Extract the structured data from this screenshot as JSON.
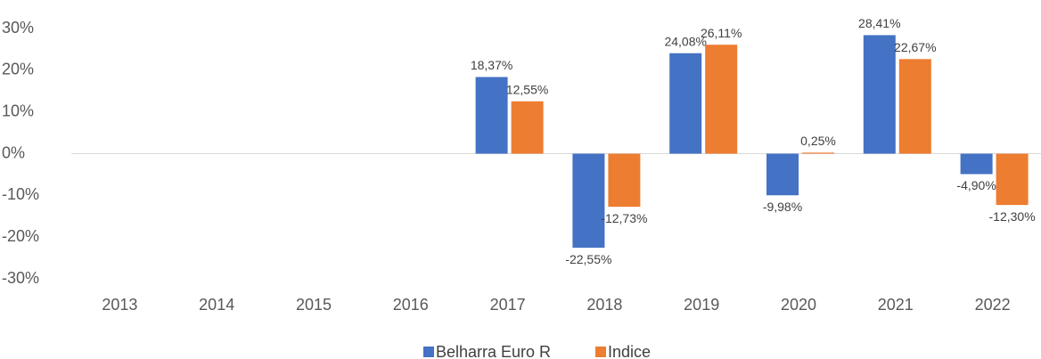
{
  "chart_data": {
    "type": "bar",
    "categories": [
      "2013",
      "2014",
      "2015",
      "2016",
      "2017",
      "2018",
      "2019",
      "2020",
      "2021",
      "2022"
    ],
    "series": [
      {
        "name": "Belharra Euro R",
        "color": "#4472c4",
        "values": [
          null,
          null,
          null,
          null,
          18.37,
          -22.55,
          24.08,
          -9.98,
          28.41,
          -4.9
        ],
        "value_labels": [
          null,
          null,
          null,
          null,
          "18,37%",
          "-22,55%",
          "24,08%",
          "-9,98%",
          "28,41%",
          "-4,90%"
        ]
      },
      {
        "name": "Indice",
        "color": "#ed7d31",
        "values": [
          null,
          null,
          null,
          null,
          12.55,
          -12.73,
          26.11,
          0.25,
          22.67,
          -12.3
        ],
        "value_labels": [
          null,
          null,
          null,
          null,
          "12,55%",
          "-12,73%",
          "26,11%",
          "0,25%",
          "22,67%",
          "-12,30%"
        ]
      }
    ],
    "ylim": [
      -30,
      30
    ],
    "yticks": [
      {
        "value": 30,
        "label": "30%"
      },
      {
        "value": 20,
        "label": "20%"
      },
      {
        "value": 10,
        "label": "10%"
      },
      {
        "value": 0,
        "label": "0%"
      },
      {
        "value": -10,
        "label": "-10%"
      },
      {
        "value": -20,
        "label": "-20%"
      },
      {
        "value": -30,
        "label": "-30%"
      }
    ],
    "grid": false,
    "legend": "bottom"
  }
}
